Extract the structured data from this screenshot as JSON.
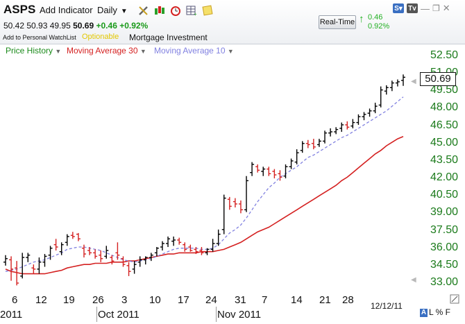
{
  "header": {
    "symbol": "ASPS",
    "add_indicator": "Add Indicator",
    "interval": "Daily",
    "quote": {
      "open": "50.42",
      "high": "50.93",
      "low": "49.95",
      "last": "50.69",
      "change": "+0.46",
      "change_pct": "+0.92%"
    },
    "watchlist": "Add to Personal WatchList",
    "optionable": "Optionable",
    "industry": "Mortgage Investment",
    "realtime_label": "Real-Time",
    "realtime_change": "0.46",
    "realtime_pct": "0.92%",
    "tool_icons": [
      "wrench-icon",
      "candlestick-icon",
      "alarm-clock-icon",
      "table-add-icon",
      "sticky-note-icon"
    ],
    "corner_icons": [
      "scripts-icon",
      "tv-icon",
      "minimize-icon",
      "restore-icon",
      "close-icon"
    ]
  },
  "legend": {
    "price": "Price History",
    "ma30": "Moving Average 30",
    "ma10": "Moving Average 10"
  },
  "colors": {
    "price_label": "#1a8a1a",
    "ma30": "#d42020",
    "ma10": "#8080e0",
    "up_bar": "#000000",
    "down_bar": "#d42020",
    "axis_text": "#1a7a1a"
  },
  "chart_data": {
    "type": "line",
    "y_ticks": [
      "52.50",
      "51.00",
      "49.50",
      "48.00",
      "46.50",
      "45.00",
      "43.50",
      "42.00",
      "40.50",
      "39.00",
      "37.50",
      "36.00",
      "34.50",
      "33.00"
    ],
    "ylim": [
      32.2,
      53.2
    ],
    "last_price": "50.69",
    "x_day_labels": [
      "6",
      "12",
      "19",
      "26",
      "3",
      "10",
      "17",
      "24",
      "31",
      "7",
      "14",
      "21",
      "28"
    ],
    "x_month_labels": [
      "2011",
      "Oct 2011",
      "Nov 2011"
    ],
    "date_label": "12/12/11",
    "bars": [
      {
        "o": 34.8,
        "h": 35.4,
        "l": 34.5,
        "c": 35.1
      },
      {
        "o": 35.0,
        "h": 35.3,
        "l": 33.2,
        "c": 34.2
      },
      {
        "o": 34.3,
        "h": 34.9,
        "l": 32.8,
        "c": 33.0
      },
      {
        "o": 33.6,
        "h": 35.6,
        "l": 33.4,
        "c": 35.2
      },
      {
        "o": 35.2,
        "h": 35.6,
        "l": 34.8,
        "c": 35.4
      },
      {
        "o": 34.3,
        "h": 34.6,
        "l": 33.8,
        "c": 34.2
      },
      {
        "o": 34.2,
        "h": 35.2,
        "l": 33.8,
        "c": 34.8
      },
      {
        "o": 34.8,
        "h": 35.5,
        "l": 34.4,
        "c": 35.3
      },
      {
        "o": 35.4,
        "h": 36.2,
        "l": 35.0,
        "c": 36.0
      },
      {
        "o": 36.3,
        "h": 36.8,
        "l": 35.8,
        "c": 36.1
      },
      {
        "o": 35.7,
        "h": 36.5,
        "l": 35.4,
        "c": 36.3
      },
      {
        "o": 36.5,
        "h": 37.2,
        "l": 36.2,
        "c": 37.0
      },
      {
        "o": 37.1,
        "h": 37.4,
        "l": 36.8,
        "c": 37.0
      },
      {
        "o": 37.2,
        "h": 37.3,
        "l": 36.6,
        "c": 36.8
      },
      {
        "o": 36.0,
        "h": 36.3,
        "l": 35.2,
        "c": 35.5
      },
      {
        "o": 35.8,
        "h": 36.1,
        "l": 35.4,
        "c": 35.6
      },
      {
        "o": 35.6,
        "h": 35.9,
        "l": 35.1,
        "c": 35.3
      },
      {
        "o": 35.4,
        "h": 35.8,
        "l": 34.8,
        "c": 35.1
      },
      {
        "o": 35.3,
        "h": 36.2,
        "l": 35.1,
        "c": 35.8
      },
      {
        "o": 35.2,
        "h": 35.4,
        "l": 34.6,
        "c": 34.9
      },
      {
        "o": 35.6,
        "h": 36.5,
        "l": 35.0,
        "c": 35.4
      },
      {
        "o": 35.1,
        "h": 35.3,
        "l": 34.4,
        "c": 34.6
      },
      {
        "o": 34.5,
        "h": 34.8,
        "l": 33.6,
        "c": 34.0
      },
      {
        "o": 34.2,
        "h": 34.9,
        "l": 33.8,
        "c": 34.6
      },
      {
        "o": 34.8,
        "h": 35.3,
        "l": 34.4,
        "c": 35.0
      },
      {
        "o": 35.0,
        "h": 35.3,
        "l": 34.6,
        "c": 35.2
      },
      {
        "o": 35.2,
        "h": 35.6,
        "l": 34.9,
        "c": 35.4
      },
      {
        "o": 35.6,
        "h": 36.1,
        "l": 35.3,
        "c": 36.0
      },
      {
        "o": 36.1,
        "h": 36.6,
        "l": 35.8,
        "c": 36.4
      },
      {
        "o": 36.4,
        "h": 37.0,
        "l": 36.1,
        "c": 36.8
      },
      {
        "o": 36.6,
        "h": 37.0,
        "l": 36.2,
        "c": 36.7
      },
      {
        "o": 36.7,
        "h": 36.9,
        "l": 36.3,
        "c": 36.5
      },
      {
        "o": 36.3,
        "h": 36.5,
        "l": 35.7,
        "c": 35.9
      },
      {
        "o": 36.1,
        "h": 36.3,
        "l": 35.7,
        "c": 35.8
      },
      {
        "o": 35.9,
        "h": 36.1,
        "l": 35.5,
        "c": 35.7
      },
      {
        "o": 35.8,
        "h": 36.1,
        "l": 35.4,
        "c": 35.6
      },
      {
        "o": 35.6,
        "h": 36.0,
        "l": 35.4,
        "c": 35.9
      },
      {
        "o": 35.9,
        "h": 36.8,
        "l": 35.7,
        "c": 36.4
      },
      {
        "o": 36.4,
        "h": 37.6,
        "l": 36.2,
        "c": 37.2
      },
      {
        "o": 37.6,
        "h": 40.6,
        "l": 37.2,
        "c": 40.3
      },
      {
        "o": 40.2,
        "h": 40.4,
        "l": 39.3,
        "c": 39.6
      },
      {
        "o": 40.0,
        "h": 40.3,
        "l": 39.5,
        "c": 39.8
      },
      {
        "o": 39.8,
        "h": 40.1,
        "l": 39.0,
        "c": 39.3
      },
      {
        "o": 39.3,
        "h": 42.2,
        "l": 39.1,
        "c": 41.8
      },
      {
        "o": 42.5,
        "h": 43.4,
        "l": 42.2,
        "c": 43.2
      },
      {
        "o": 43.0,
        "h": 43.2,
        "l": 42.5,
        "c": 42.7
      },
      {
        "o": 42.6,
        "h": 43.0,
        "l": 42.2,
        "c": 42.8
      },
      {
        "o": 42.8,
        "h": 43.0,
        "l": 42.2,
        "c": 42.4
      },
      {
        "o": 42.6,
        "h": 42.8,
        "l": 42.0,
        "c": 42.3
      },
      {
        "o": 42.4,
        "h": 42.7,
        "l": 41.8,
        "c": 42.1
      },
      {
        "o": 42.2,
        "h": 43.2,
        "l": 42.0,
        "c": 43.0
      },
      {
        "o": 43.0,
        "h": 43.7,
        "l": 42.8,
        "c": 43.5
      },
      {
        "o": 43.4,
        "h": 44.5,
        "l": 43.2,
        "c": 44.2
      },
      {
        "o": 44.4,
        "h": 45.2,
        "l": 44.2,
        "c": 45.0
      },
      {
        "o": 45.0,
        "h": 45.3,
        "l": 44.6,
        "c": 44.9
      },
      {
        "o": 45.0,
        "h": 45.4,
        "l": 44.5,
        "c": 44.7
      },
      {
        "o": 44.9,
        "h": 45.4,
        "l": 44.7,
        "c": 45.2
      },
      {
        "o": 45.2,
        "h": 46.1,
        "l": 45.0,
        "c": 45.9
      },
      {
        "o": 45.9,
        "h": 46.3,
        "l": 45.6,
        "c": 46.0
      },
      {
        "o": 46.0,
        "h": 46.4,
        "l": 45.8,
        "c": 46.2
      },
      {
        "o": 46.3,
        "h": 46.8,
        "l": 46.0,
        "c": 46.6
      },
      {
        "o": 46.6,
        "h": 46.9,
        "l": 46.2,
        "c": 46.4
      },
      {
        "o": 46.5,
        "h": 47.1,
        "l": 46.3,
        "c": 46.8
      },
      {
        "o": 46.8,
        "h": 47.5,
        "l": 46.6,
        "c": 47.3
      },
      {
        "o": 47.3,
        "h": 47.7,
        "l": 47.0,
        "c": 47.5
      },
      {
        "o": 47.6,
        "h": 48.0,
        "l": 47.3,
        "c": 47.8
      },
      {
        "o": 47.8,
        "h": 48.5,
        "l": 47.6,
        "c": 48.2
      },
      {
        "o": 48.3,
        "h": 49.9,
        "l": 48.1,
        "c": 49.6
      },
      {
        "o": 49.5,
        "h": 50.0,
        "l": 49.2,
        "c": 49.8
      },
      {
        "o": 49.8,
        "h": 50.4,
        "l": 49.5,
        "c": 50.2
      },
      {
        "o": 50.2,
        "h": 50.5,
        "l": 49.9,
        "c": 50.3
      },
      {
        "o": 50.42,
        "h": 50.93,
        "l": 49.95,
        "c": 50.69
      }
    ],
    "series": [
      {
        "name": "Moving Average 30",
        "values": [
          34.2,
          34.0,
          33.9,
          33.8,
          33.8,
          33.8,
          33.8,
          33.8,
          33.9,
          34.0,
          34.1,
          34.3,
          34.4,
          34.5,
          34.6,
          34.6,
          34.7,
          34.7,
          34.7,
          34.8,
          34.8,
          34.8,
          34.9,
          34.9,
          35.0,
          35.1,
          35.2,
          35.3,
          35.4,
          35.5,
          35.5,
          35.6,
          35.6,
          35.6,
          35.6,
          35.7,
          35.7,
          35.7,
          35.8,
          35.9,
          36.1,
          36.3,
          36.5,
          36.8,
          37.1,
          37.4,
          37.6,
          37.8,
          38.1,
          38.4,
          38.7,
          39.0,
          39.3,
          39.6,
          39.9,
          40.2,
          40.5,
          40.8,
          41.1,
          41.4,
          41.8,
          42.1,
          42.5,
          42.9,
          43.3,
          43.7,
          44.1,
          44.4,
          44.8,
          45.1,
          45.4,
          45.6
        ]
      },
      {
        "name": "Moving Average 10",
        "values": [
          34.0,
          34.1,
          34.2,
          34.4,
          34.6,
          34.8,
          34.9,
          35.0,
          35.2,
          35.4,
          35.6,
          35.9,
          36.0,
          36.1,
          36.1,
          36.0,
          35.9,
          35.8,
          35.6,
          35.4,
          35.2,
          35.0,
          34.9,
          34.8,
          34.9,
          35.0,
          35.1,
          35.3,
          35.5,
          35.7,
          35.9,
          36.0,
          36.0,
          36.0,
          36.0,
          35.9,
          35.9,
          36.0,
          36.3,
          36.8,
          37.3,
          37.6,
          38.0,
          38.6,
          39.3,
          40.0,
          40.6,
          41.2,
          41.6,
          42.1,
          42.4,
          42.7,
          43.0,
          43.4,
          43.8,
          44.0,
          44.3,
          44.6,
          44.9,
          45.2,
          45.5,
          45.7,
          46.0,
          46.3,
          46.6,
          46.9,
          47.2,
          47.5,
          47.8,
          48.2,
          48.6,
          49.0
        ]
      }
    ],
    "grid": false
  }
}
